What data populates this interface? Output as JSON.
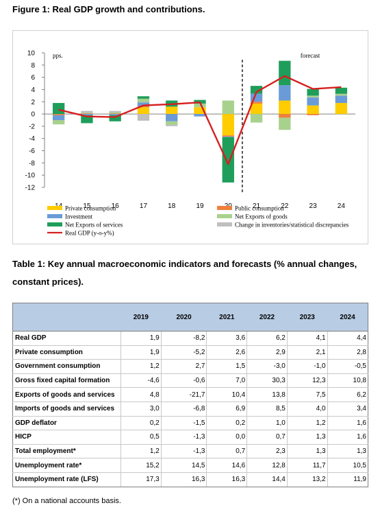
{
  "figure_title": "Figure 1: Real GDP growth and contributions.",
  "chart_data": {
    "type": "bar",
    "stacked": true,
    "unit_label": "pps.",
    "forecast_label": "forecast",
    "forecast_divider_between": [
      "20",
      "21"
    ],
    "categories": [
      "14",
      "15",
      "16",
      "17",
      "18",
      "19",
      "20",
      "21",
      "22",
      "23",
      "24"
    ],
    "ylim": [
      -12,
      10
    ],
    "yticks": [
      10,
      8,
      6,
      4,
      2,
      0,
      -2,
      -4,
      -6,
      -8,
      -10,
      -12
    ],
    "grid": false,
    "legend_position": "bottom",
    "series": [
      {
        "name": "Private consumption",
        "color": "#ffcc00",
        "values": [
          0.0,
          0.0,
          0.0,
          1.1,
          1.2,
          1.1,
          -3.5,
          1.7,
          2.2,
          1.4,
          1.8
        ]
      },
      {
        "name": "Public consumption",
        "color": "#f07f3c",
        "values": [
          -0.2,
          0.1,
          0.1,
          0.2,
          0.0,
          0.0,
          -0.2,
          0.3,
          -0.6,
          -0.2,
          0.0
        ]
      },
      {
        "name": "Investment",
        "color": "#6a9bd8",
        "values": [
          -0.8,
          -0.2,
          -0.2,
          0.6,
          -1.2,
          -0.4,
          -0.1,
          1.3,
          2.5,
          1.3,
          1.2
        ]
      },
      {
        "name": "Net Exports of goods",
        "color": "#a9d18e",
        "values": [
          -0.7,
          0.1,
          0.2,
          0.6,
          -0.6,
          0.6,
          2.2,
          -1.4,
          -2.0,
          0.3,
          0.3
        ]
      },
      {
        "name": "Net Exports of services",
        "color": "#1e9e5a",
        "values": [
          1.8,
          -1.3,
          -1.0,
          0.4,
          1.0,
          0.6,
          -7.4,
          1.3,
          4.0,
          1.1,
          1.0
        ]
      },
      {
        "name": "Change in inventories/statistical discrepancies",
        "color": "#bfbfbf",
        "values": [
          0.0,
          0.3,
          0.2,
          -1.1,
          -0.2,
          0.0,
          0.0,
          0.0,
          0.0,
          0.0,
          0.0
        ]
      }
    ],
    "line": {
      "name": "Real GDP (y-o-y%)",
      "color": "#d62020",
      "values": [
        0.7,
        -0.4,
        -0.5,
        1.4,
        1.6,
        1.9,
        -8.2,
        3.6,
        6.2,
        4.1,
        4.4
      ]
    },
    "legend": [
      {
        "name": "Private consumption",
        "kind": "bar",
        "color": "#ffcc00"
      },
      {
        "name": "Public consumption",
        "kind": "bar",
        "color": "#f07f3c"
      },
      {
        "name": "Investment",
        "kind": "bar",
        "color": "#6a9bd8"
      },
      {
        "name": "Net Exports of goods",
        "kind": "bar",
        "color": "#a9d18e"
      },
      {
        "name": "Net Exports of services",
        "kind": "bar",
        "color": "#1e9e5a"
      },
      {
        "name": "Change in inventories/statistical discrepancies",
        "kind": "bar",
        "color": "#bfbfbf"
      },
      {
        "name": "Real GDP (y-o-y%)",
        "kind": "line",
        "color": "#d62020"
      }
    ]
  },
  "table_title": "Table 1: Key annual macroeconomic indicators and forecasts (% annual changes, constant prices).",
  "table": {
    "columns": [
      "",
      "2019",
      "2020",
      "2021",
      "2022",
      "2023",
      "2024"
    ],
    "rows": [
      [
        "Real GDP",
        "1,9",
        "-8,2",
        "3,6",
        "6,2",
        "4,1",
        "4,4"
      ],
      [
        "Private consumption",
        "1,9",
        "-5,2",
        "2,6",
        "2,9",
        "2,1",
        "2,8"
      ],
      [
        "Government consumption",
        "1,2",
        "2,7",
        "1,5",
        "-3,0",
        "-1,0",
        "-0,5"
      ],
      [
        "Gross fixed capital formation",
        "-4,6",
        "-0,6",
        "7,0",
        "30,3",
        "12,3",
        "10,8"
      ],
      [
        "Exports of goods and services",
        "4,8",
        "-21,7",
        "10,4",
        "13,8",
        "7,5",
        "6,2"
      ],
      [
        "Imports of goods and services",
        "3,0",
        "-6,8",
        "6,9",
        "8,5",
        "4,0",
        "3,4"
      ],
      [
        "GDP deflator",
        "0,2",
        "-1,5",
        "0,2",
        "1,0",
        "1,2",
        "1,6"
      ],
      [
        "HICP",
        "0,5",
        "-1,3",
        "0,0",
        "0,7",
        "1,3",
        "1,6"
      ],
      [
        "Total employment*",
        "1,2",
        "-1,3",
        "0,7",
        "2,3",
        "1,3",
        "1,3"
      ],
      [
        "Unemployment rate*",
        "15,2",
        "14,5",
        "14,6",
        "12,8",
        "11,7",
        "10,5"
      ],
      [
        "Unemployment rate (LFS)",
        "17,3",
        "16,3",
        "16,3",
        "14,4",
        "13,2",
        "11,9"
      ]
    ]
  },
  "footnote": "(*) On a national accounts basis."
}
